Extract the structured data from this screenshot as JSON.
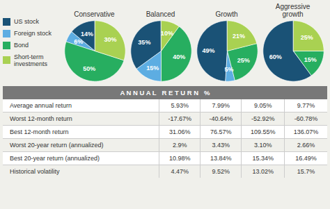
{
  "chart_data": [
    {
      "type": "pie",
      "title": "Conservative",
      "categories": [
        "US stock",
        "Foreign stock",
        "Bond",
        "Short-term\ninvestments"
      ],
      "values": [
        14,
        6,
        50,
        30
      ],
      "value_labels": [
        "14%",
        "6%",
        "50%",
        "30%"
      ],
      "colors": [
        "#1a5276",
        "#5dade2",
        "#27ae60",
        "#a9d152"
      ],
      "data_labels": true,
      "legend": "left"
    },
    {
      "type": "pie",
      "title": "Balanced",
      "categories": [
        "US stock",
        "Foreign stock",
        "Bond",
        "Short-term\ninvestments"
      ],
      "values": [
        35,
        15,
        40,
        10
      ],
      "value_labels": [
        "35%",
        "15%",
        "40%",
        "10%"
      ],
      "colors": [
        "#1a5276",
        "#5dade2",
        "#27ae60",
        "#a9d152"
      ],
      "data_labels": true,
      "legend": "left"
    },
    {
      "type": "pie",
      "title": "Growth",
      "categories": [
        "US stock",
        "Foreign stock",
        "Bond",
        "Short-term\ninvestments"
      ],
      "values": [
        49,
        5,
        25,
        21
      ],
      "value_labels": [
        "49%",
        "5%",
        "25%",
        "21%"
      ],
      "colors": [
        "#1a5276",
        "#5dade2",
        "#27ae60",
        "#a9d152"
      ],
      "data_labels": true,
      "legend": "left"
    },
    {
      "type": "pie",
      "title": "Aggressive\ngrowth",
      "categories": [
        "US stock",
        "Foreign stock",
        "Bond",
        "Short-term\ninvestments"
      ],
      "values": [
        60,
        0,
        15,
        25
      ],
      "value_labels": [
        "60%",
        null,
        "15%",
        "25%"
      ],
      "colors": [
        "#1a5276",
        "#5dade2",
        "#27ae60",
        "#a9d152"
      ],
      "data_labels": true,
      "legend": "left"
    },
    {
      "type": "table",
      "title": "A N N U A L   R E T U R N   %",
      "categories": [
        "Average annual return",
        "Worst 12-month return",
        "Best 12-month return",
        "Worst 20-year return (annualized)",
        "Best 20-year return (annualized)",
        "Historical volatility"
      ],
      "series": [
        {
          "values": [
            5.93,
            -17.67,
            31.06,
            2.9,
            10.98,
            4.47
          ],
          "value_labels": [
            "5.93%",
            "-17.67%",
            "31.06%",
            "2.9%",
            "10.98%",
            "4.47%"
          ]
        },
        {
          "values": [
            7.99,
            -40.64,
            76.57,
            3.43,
            13.84,
            9.52
          ],
          "value_labels": [
            "7.99%",
            "-40.64%",
            "76.57%",
            "3.43%",
            "13.84%",
            "9.52%"
          ]
        },
        {
          "values": [
            9.05,
            -52.92,
            109.55,
            3.1,
            15.34,
            13.02
          ],
          "value_labels": [
            "9.05%",
            "-52.92%",
            "109.55%",
            "3.10%",
            "15.34%",
            "13.02%"
          ]
        },
        {
          "values": [
            9.77,
            -60.78,
            136.07,
            2.66,
            16.49,
            15.7
          ],
          "value_labels": [
            "9.77%",
            "-60.78%",
            "136.07%",
            "2.66%",
            "16.49%",
            "15.7%"
          ]
        }
      ],
      "data_labels": true
    }
  ]
}
